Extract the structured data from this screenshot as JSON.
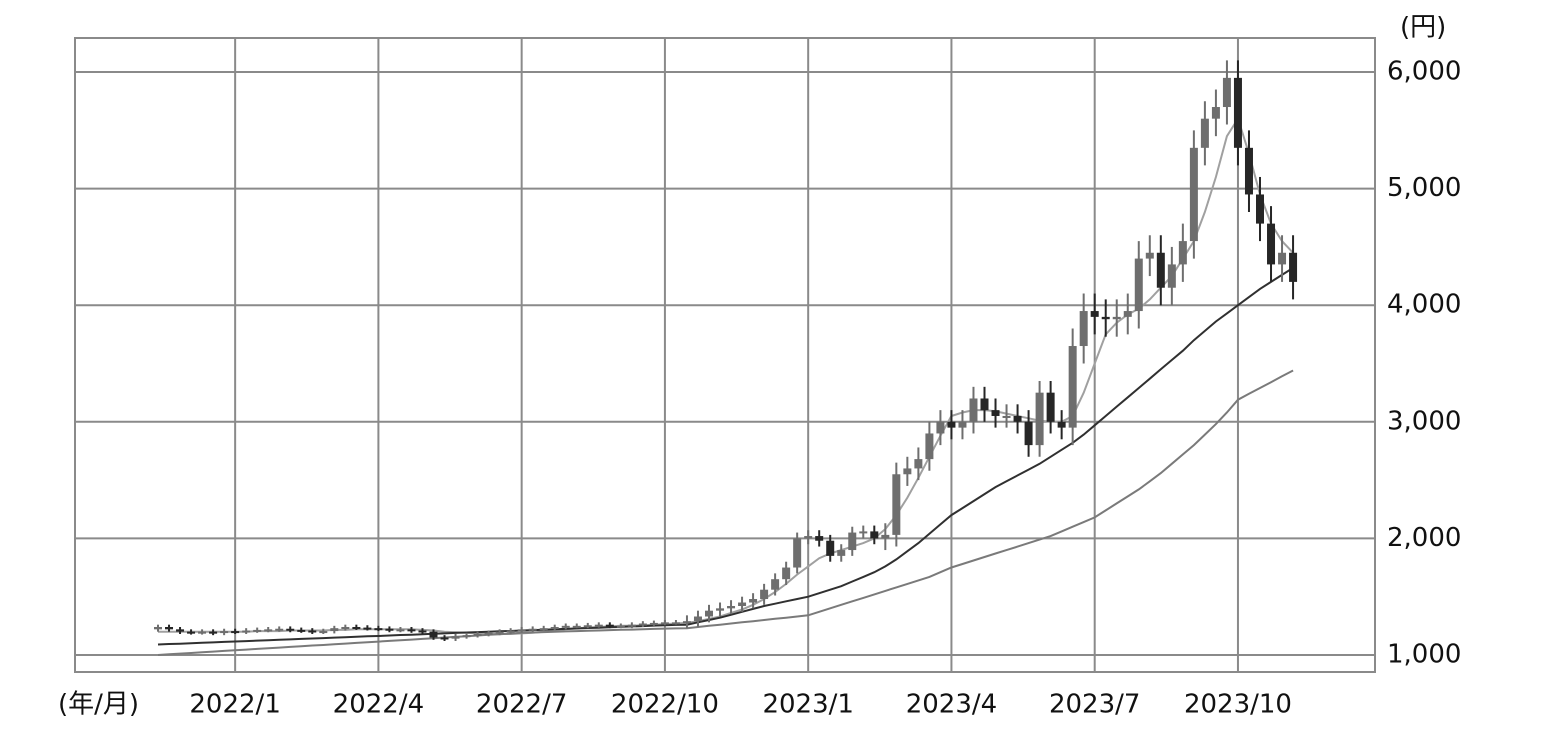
{
  "chart_data": {
    "type": "candlestick",
    "y_unit": "(円)",
    "x_unit": "(年/月)",
    "categories": [
      null,
      null,
      null,
      null,
      null,
      null,
      null,
      "2022/1",
      null,
      null,
      null,
      null,
      null,
      null,
      null,
      null,
      null,
      null,
      null,
      null,
      "2022/4",
      null,
      null,
      null,
      null,
      null,
      null,
      null,
      null,
      null,
      null,
      null,
      null,
      "2022/7",
      null,
      null,
      null,
      null,
      null,
      null,
      null,
      null,
      null,
      null,
      null,
      null,
      "2022/10",
      null,
      null,
      null,
      null,
      null,
      null,
      null,
      null,
      null,
      null,
      null,
      null,
      "2023/1",
      null,
      null,
      null,
      null,
      null,
      null,
      null,
      null,
      null,
      null,
      null,
      null,
      "2023/4",
      null,
      null,
      null,
      null,
      null,
      null,
      null,
      null,
      null,
      null,
      null,
      null,
      "2023/7",
      null,
      null,
      null,
      null,
      null,
      null,
      null,
      null,
      null,
      null,
      null,
      null,
      "2023/10",
      null,
      null,
      null,
      null,
      null
    ],
    "open": [
      1220,
      1240,
      1220,
      1200,
      1195,
      1200,
      1190,
      1205,
      1200,
      1210,
      1215,
      1220,
      1225,
      1215,
      1210,
      1200,
      1205,
      1230,
      1240,
      1235,
      1230,
      1225,
      1215,
      1220,
      1210,
      1200,
      1150,
      1140,
      1160,
      1170,
      1180,
      1190,
      1200,
      1210,
      1220,
      1225,
      1230,
      1240,
      1250,
      1250,
      1255,
      1260,
      1250,
      1250,
      1260,
      1270,
      1275,
      1280,
      1280,
      1290,
      1330,
      1380,
      1400,
      1420,
      1450,
      1480,
      1560,
      1650,
      1750,
      2000,
      2020,
      1980,
      1850,
      1900,
      2050,
      2060,
      2000,
      2030,
      2550,
      2600,
      2680,
      2900,
      3000,
      2950,
      3000,
      3200,
      3100,
      3050,
      3050,
      3000,
      2800,
      3250,
      3000,
      2950,
      3650,
      3950,
      3900,
      3880,
      3900,
      3950,
      4400,
      4450,
      4150,
      4350,
      4550,
      5350,
      5600,
      5700,
      5950,
      5350,
      4950,
      4700,
      4350,
      4450
    ],
    "high": [
      1260,
      1260,
      1240,
      1220,
      1220,
      1220,
      1225,
      1225,
      1230,
      1235,
      1240,
      1245,
      1245,
      1235,
      1230,
      1225,
      1250,
      1260,
      1260,
      1255,
      1250,
      1245,
      1240,
      1240,
      1230,
      1220,
      1170,
      1180,
      1190,
      1200,
      1210,
      1220,
      1230,
      1240,
      1245,
      1250,
      1260,
      1270,
      1270,
      1275,
      1280,
      1280,
      1270,
      1280,
      1290,
      1295,
      1300,
      1300,
      1340,
      1380,
      1430,
      1450,
      1470,
      1500,
      1530,
      1610,
      1700,
      1800,
      2050,
      2070,
      2070,
      2030,
      1950,
      2100,
      2110,
      2110,
      2130,
      2650,
      2700,
      2780,
      3000,
      3100,
      3100,
      3100,
      3300,
      3300,
      3200,
      3150,
      3150,
      3100,
      3350,
      3350,
      3100,
      3800,
      4100,
      4100,
      4050,
      4050,
      4100,
      4550,
      4600,
      4600,
      4500,
      4700,
      5500,
      5750,
      5850,
      6100,
      6100,
      5500,
      5100,
      4850,
      4600,
      4600
    ],
    "low": [
      1200,
      1200,
      1180,
      1175,
      1175,
      1170,
      1170,
      1180,
      1180,
      1190,
      1195,
      1200,
      1195,
      1190,
      1180,
      1180,
      1185,
      1210,
      1215,
      1210,
      1205,
      1195,
      1195,
      1190,
      1180,
      1130,
      1120,
      1120,
      1140,
      1150,
      1160,
      1170,
      1180,
      1190,
      1200,
      1205,
      1210,
      1220,
      1230,
      1230,
      1235,
      1230,
      1230,
      1230,
      1240,
      1250,
      1255,
      1260,
      1230,
      1240,
      1280,
      1330,
      1350,
      1370,
      1400,
      1430,
      1510,
      1600,
      1700,
      1950,
      1930,
      1800,
      1800,
      1850,
      2000,
      1950,
      1900,
      1930,
      2450,
      2500,
      2580,
      2800,
      2850,
      2850,
      2900,
      3000,
      2950,
      2950,
      2900,
      2700,
      2700,
      2900,
      2850,
      2800,
      3500,
      3750,
      3730,
      3730,
      3750,
      3800,
      4250,
      4000,
      4000,
      4200,
      4400,
      5200,
      5450,
      5550,
      5200,
      4800,
      4550,
      4200,
      4200,
      4050
    ],
    "close": [
      1240,
      1220,
      1200,
      1195,
      1200,
      1190,
      1205,
      1200,
      1210,
      1215,
      1220,
      1225,
      1215,
      1210,
      1200,
      1205,
      1230,
      1240,
      1235,
      1230,
      1225,
      1215,
      1220,
      1210,
      1200,
      1150,
      1140,
      1160,
      1170,
      1180,
      1190,
      1200,
      1210,
      1220,
      1225,
      1230,
      1240,
      1250,
      1250,
      1255,
      1260,
      1250,
      1250,
      1260,
      1270,
      1275,
      1280,
      1280,
      1290,
      1330,
      1380,
      1400,
      1420,
      1450,
      1480,
      1560,
      1650,
      1750,
      2000,
      2020,
      1980,
      1850,
      1900,
      2050,
      2060,
      2000,
      2030,
      2550,
      2600,
      2680,
      2900,
      3000,
      2950,
      3000,
      3200,
      3100,
      3050,
      3050,
      3000,
      2800,
      3250,
      3000,
      2950,
      3650,
      3950,
      3900,
      3880,
      3900,
      3950,
      4400,
      4450,
      4150,
      4350,
      4550,
      5350,
      5600,
      5700,
      5950,
      5350,
      4950,
      4700,
      4350,
      4450,
      4200
    ],
    "up_color": "#6e6e6e",
    "down_color": "#262626",
    "series": [
      {
        "color": "#a0a0a0",
        "values": [
          1200,
          1200,
          1200,
          1200,
          1200,
          1200,
          1200,
          1200,
          1200,
          1205,
          1205,
          1205,
          1210,
          1210,
          1210,
          1210,
          1215,
          1215,
          1220,
          1220,
          1220,
          1220,
          1220,
          1220,
          1215,
          1210,
          1200,
          1195,
          1190,
          1185,
          1180,
          1180,
          1180,
          1185,
          1190,
          1200,
          1210,
          1220,
          1230,
          1235,
          1240,
          1245,
          1250,
          1250,
          1255,
          1260,
          1265,
          1270,
          1275,
          1290,
          1310,
          1330,
          1360,
          1390,
          1430,
          1480,
          1540,
          1610,
          1690,
          1760,
          1830,
          1870,
          1900,
          1930,
          1960,
          2000,
          2080,
          2200,
          2350,
          2520,
          2700,
          2880,
          3050,
          3080,
          3100,
          3100,
          3090,
          3070,
          3050,
          3030,
          3010,
          3000,
          3000,
          3050,
          3250,
          3500,
          3750,
          3850,
          3920,
          3970,
          4050,
          4150,
          4250,
          4400,
          4550,
          4800,
          5100,
          5450,
          5600,
          5300,
          4950,
          4700,
          4550,
          4450
        ]
      },
      {
        "color": "#303030",
        "values": [
          1090,
          1094,
          1097,
          1101,
          1105,
          1108,
          1112,
          1116,
          1119,
          1123,
          1127,
          1130,
          1134,
          1138,
          1141,
          1145,
          1149,
          1152,
          1156,
          1160,
          1163,
          1167,
          1171,
          1174,
          1178,
          1182,
          1185,
          1189,
          1193,
          1196,
          1200,
          1203,
          1206,
          1210,
          1213,
          1217,
          1220,
          1224,
          1227,
          1231,
          1234,
          1238,
          1241,
          1245,
          1248,
          1252,
          1255,
          1258,
          1260,
          1280,
          1300,
          1320,
          1345,
          1370,
          1395,
          1420,
          1440,
          1460,
          1480,
          1500,
          1530,
          1560,
          1590,
          1630,
          1670,
          1710,
          1760,
          1820,
          1890,
          1960,
          2040,
          2120,
          2200,
          2260,
          2320,
          2380,
          2440,
          2490,
          2540,
          2590,
          2640,
          2700,
          2760,
          2820,
          2890,
          2970,
          3050,
          3130,
          3210,
          3290,
          3370,
          3450,
          3530,
          3610,
          3700,
          3780,
          3860,
          3930,
          4000,
          4070,
          4140,
          4200,
          4260,
          4320
        ]
      },
      {
        "color": "#7a7a7a",
        "values": [
          1000,
          1006,
          1012,
          1017,
          1023,
          1029,
          1035,
          1040,
          1046,
          1052,
          1058,
          1063,
          1069,
          1075,
          1081,
          1086,
          1092,
          1098,
          1104,
          1109,
          1115,
          1121,
          1127,
          1132,
          1138,
          1144,
          1150,
          1155,
          1161,
          1167,
          1173,
          1178,
          1184,
          1190,
          1193,
          1196,
          1199,
          1202,
          1205,
          1208,
          1210,
          1213,
          1216,
          1218,
          1221,
          1224,
          1226,
          1228,
          1230,
          1240,
          1250,
          1260,
          1270,
          1280,
          1290,
          1300,
          1310,
          1320,
          1330,
          1340,
          1370,
          1400,
          1430,
          1460,
          1490,
          1520,
          1550,
          1580,
          1610,
          1640,
          1670,
          1710,
          1750,
          1780,
          1810,
          1840,
          1870,
          1900,
          1930,
          1960,
          1990,
          2020,
          2060,
          2100,
          2140,
          2180,
          2240,
          2300,
          2360,
          2420,
          2490,
          2560,
          2640,
          2720,
          2800,
          2890,
          2980,
          3080,
          3190,
          3240,
          3290,
          3340,
          3390,
          3440
        ]
      }
    ],
    "ylim": [
      854,
      6292
    ],
    "yticks": [
      {
        "value": 1000,
        "label": "1,000"
      },
      {
        "value": 2000,
        "label": "2,000"
      },
      {
        "value": 3000,
        "label": "3,000"
      },
      {
        "value": 4000,
        "label": "4,000"
      },
      {
        "value": 5000,
        "label": "5,000"
      },
      {
        "value": 6000,
        "label": "6,000"
      }
    ],
    "grid": true
  }
}
